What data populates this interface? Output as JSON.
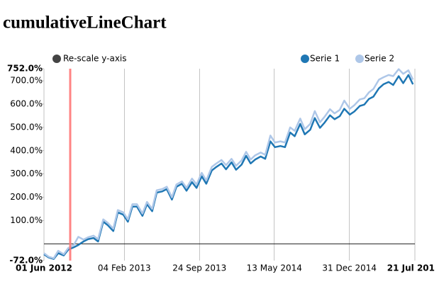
{
  "chart_data": {
    "type": "line",
    "title": "cumulativeLineChart",
    "controls": [
      "Re-scale y-axis"
    ],
    "legend": "top-right",
    "grid": true,
    "index_line": "2012-08-21",
    "x": [
      "2012-06-01",
      "2012-06-15",
      "2012-07-01",
      "2012-07-15",
      "2012-08-01",
      "2012-08-15",
      "2012-09-01",
      "2012-09-15",
      "2012-10-01",
      "2012-10-15",
      "2012-11-01",
      "2012-11-15",
      "2012-12-01",
      "2012-12-15",
      "2013-01-01",
      "2013-01-15",
      "2013-02-01",
      "2013-02-15",
      "2013-03-01",
      "2013-03-15",
      "2013-04-01",
      "2013-04-15",
      "2013-05-01",
      "2013-05-15",
      "2013-06-01",
      "2013-06-15",
      "2013-07-01",
      "2013-07-15",
      "2013-08-01",
      "2013-08-15",
      "2013-09-01",
      "2013-09-15",
      "2013-10-01",
      "2013-10-15",
      "2013-11-01",
      "2013-11-15",
      "2013-12-01",
      "2013-12-15",
      "2014-01-01",
      "2014-01-15",
      "2014-02-01",
      "2014-02-15",
      "2014-03-01",
      "2014-03-15",
      "2014-04-01",
      "2014-04-15",
      "2014-05-01",
      "2014-05-15",
      "2014-06-01",
      "2014-06-15",
      "2014-07-01",
      "2014-07-15",
      "2014-08-01",
      "2014-08-15",
      "2014-09-01",
      "2014-09-15",
      "2014-10-01",
      "2014-10-15",
      "2014-11-01",
      "2014-11-15",
      "2014-12-01",
      "2014-12-15",
      "2015-01-01",
      "2015-01-15",
      "2015-02-01",
      "2015-02-15",
      "2015-03-01",
      "2015-03-15",
      "2015-04-01",
      "2015-04-15",
      "2015-05-01",
      "2015-05-15",
      "2015-06-01",
      "2015-06-15",
      "2015-07-01",
      "2015-07-15"
    ],
    "series": [
      {
        "name": "Serie 1",
        "color": "#1f77b4",
        "values": [
          -45,
          -58,
          -65,
          -40,
          -50,
          -25,
          -15,
          -5,
          10,
          20,
          25,
          10,
          95,
          80,
          55,
          135,
          125,
          95,
          160,
          160,
          120,
          170,
          140,
          220,
          225,
          235,
          190,
          245,
          258,
          228,
          265,
          240,
          290,
          258,
          315,
          330,
          345,
          320,
          350,
          318,
          340,
          378,
          345,
          362,
          375,
          365,
          440,
          415,
          420,
          415,
          478,
          462,
          515,
          470,
          490,
          540,
          498,
          520,
          552,
          535,
          548,
          580,
          555,
          568,
          592,
          598,
          622,
          632,
          668,
          685,
          695,
          682,
          720,
          690,
          725,
          685
        ]
      },
      {
        "name": "Serie 2",
        "color": "#aec7e8",
        "values": [
          -40,
          -55,
          -62,
          -30,
          -45,
          -18,
          -5,
          30,
          18,
          28,
          35,
          20,
          105,
          90,
          65,
          145,
          135,
          105,
          170,
          170,
          130,
          180,
          150,
          230,
          235,
          245,
          200,
          255,
          268,
          240,
          280,
          255,
          305,
          272,
          330,
          345,
          360,
          338,
          365,
          335,
          358,
          395,
          362,
          380,
          392,
          382,
          465,
          435,
          440,
          435,
          500,
          485,
          538,
          492,
          515,
          570,
          522,
          545,
          578,
          560,
          575,
          615,
          580,
          595,
          620,
          625,
          650,
          665,
          705,
          715,
          725,
          720,
          750,
          730,
          745,
          705
        ]
      }
    ],
    "xlim": [
      "2012-06-01",
      "2015-07-21"
    ],
    "xticks": [
      {
        "value": "2012-06-01",
        "label": "01 Jun 2012"
      },
      {
        "value": "2013-02-04",
        "label": "04 Feb 2013"
      },
      {
        "value": "2013-09-24",
        "label": "24 Sep 2013"
      },
      {
        "value": "2014-05-13",
        "label": "13 May 2014"
      },
      {
        "value": "2014-12-31",
        "label": "31 Dec 2014"
      },
      {
        "value": "2015-07-21",
        "label": "21 Jul 201"
      }
    ],
    "ylim": [
      -72,
      752
    ],
    "yticks": [
      {
        "value": -72,
        "label": "-72.0%"
      },
      {
        "value": 100,
        "label": "100.0%"
      },
      {
        "value": 200,
        "label": "200.0%"
      },
      {
        "value": 300,
        "label": "300.0%"
      },
      {
        "value": 400,
        "label": "400.0%"
      },
      {
        "value": 500,
        "label": "500.0%"
      },
      {
        "value": 600,
        "label": "600.0%"
      },
      {
        "value": 700,
        "label": "700.0%"
      },
      {
        "value": 752,
        "label": "752.0%"
      }
    ]
  }
}
